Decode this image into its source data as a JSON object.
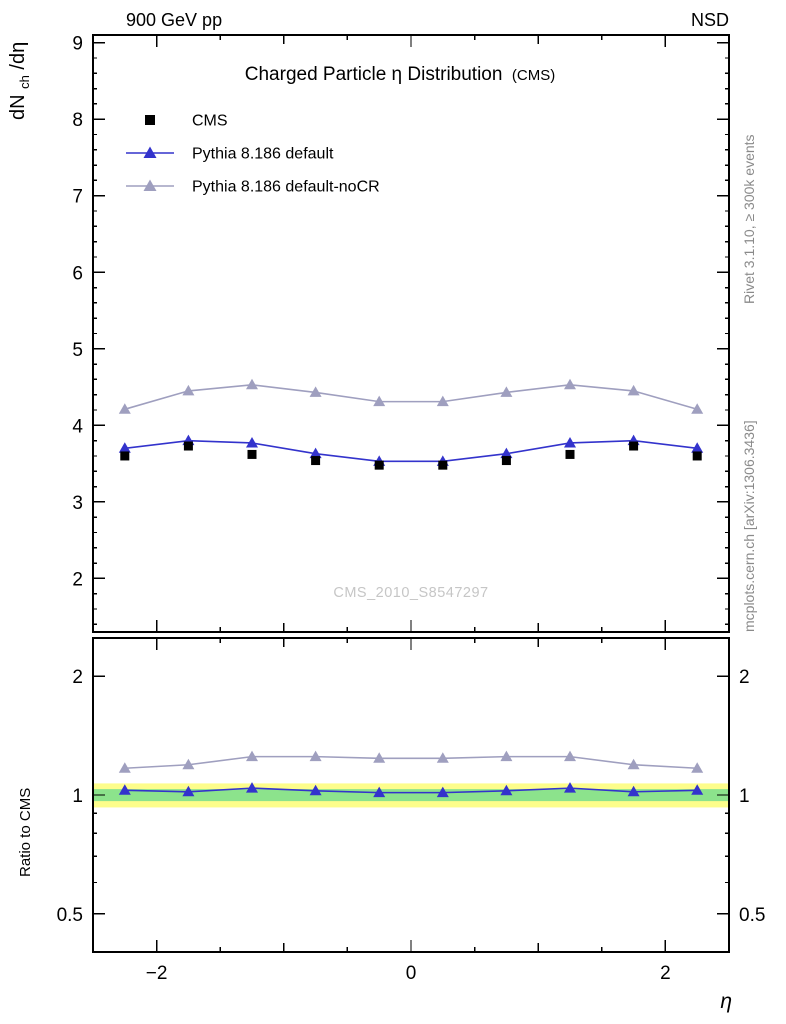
{
  "header": {
    "left": "900 GeV pp",
    "right": "NSD"
  },
  "titles": {
    "main": "Charged Particle η Distribution",
    "suffix": "(CMS)",
    "watermark": "CMS_2010_S8547297",
    "ylabel_main_pre": "dN",
    "ylabel_main_sub": "ch",
    "ylabel_main_post": "/dη",
    "ylabel_ratio": "Ratio to CMS",
    "xlabel": "η",
    "right_top": "Rivet 3.1.10, ≥ 300k events",
    "right_bottom": "mcplots.cern.ch [arXiv:1306.3436]"
  },
  "legend": [
    {
      "label": "CMS",
      "marker": "square",
      "color": "#000000",
      "line": false
    },
    {
      "label": "Pythia 8.186 default",
      "marker": "triangle",
      "color": "#3333cc",
      "line": true
    },
    {
      "label": "Pythia 8.186 default-noCR",
      "marker": "triangle",
      "color": "#9f9fbf",
      "line": true
    }
  ],
  "colors": {
    "pythia_default": "#3333cc",
    "pythia_nocr": "#9f9fbf",
    "cms_data": "#000000",
    "band_outer": "#fdfd8b",
    "band_inner": "#8ce38c",
    "side_text": "#8a8a8a",
    "watermark": "#c6c6c6"
  },
  "chart_data": [
    {
      "type": "line",
      "panel": "main",
      "title": "Charged Particle η Distribution (CMS)",
      "xlabel": "η",
      "ylabel": "dN_ch/dη",
      "xlim": [
        -2.5,
        2.5
      ],
      "ylim": [
        1.3,
        9.1
      ],
      "yscale": "linear",
      "yticks": [
        2,
        3,
        4,
        5,
        6,
        7,
        8,
        9
      ],
      "ytick_labels": [
        "2",
        "3",
        "4",
        "5",
        "6",
        "7",
        "8",
        "9"
      ],
      "yminor_step": 0.2,
      "xticks": [
        -2,
        0,
        2
      ],
      "xtick_labels": [
        "−2",
        "0",
        "2"
      ],
      "show_xtick_labels": false,
      "ylabels_both": false,
      "legend_position": "top-left-inside",
      "grid": false,
      "x": [
        -2.25,
        -1.75,
        -1.25,
        -0.75,
        -0.25,
        0.25,
        0.75,
        1.25,
        1.75,
        2.25
      ],
      "series": [
        {
          "name": "Pythia 8.186 default-noCR",
          "marker": "triangle",
          "color": "#9f9fbf",
          "line": true,
          "values": [
            4.21,
            4.45,
            4.53,
            4.43,
            4.31,
            4.31,
            4.43,
            4.53,
            4.45,
            4.21
          ]
        },
        {
          "name": "Pythia 8.186 default",
          "marker": "triangle",
          "color": "#3333cc",
          "line": true,
          "values": [
            3.7,
            3.8,
            3.77,
            3.63,
            3.53,
            3.53,
            3.63,
            3.77,
            3.8,
            3.7
          ]
        },
        {
          "name": "CMS",
          "marker": "square",
          "color": "#000000",
          "line": false,
          "values": [
            3.6,
            3.73,
            3.62,
            3.54,
            3.48,
            3.48,
            3.54,
            3.62,
            3.73,
            3.6
          ]
        }
      ]
    },
    {
      "type": "line",
      "panel": "ratio",
      "ylabel": "Ratio to CMS",
      "xlabel": "η",
      "xlim": [
        -2.5,
        2.5
      ],
      "ylim": [
        0.4,
        2.5
      ],
      "yscale": "log",
      "yticks": [
        0.5,
        1,
        2
      ],
      "ytick_labels": [
        "0.5",
        "1",
        "2"
      ],
      "yminors": [
        0.4,
        0.6,
        0.7,
        0.8,
        0.9
      ],
      "xticks": [
        -2,
        0,
        2
      ],
      "xtick_labels": [
        "−2",
        "0",
        "2"
      ],
      "show_xtick_labels": true,
      "ylabels_both": true,
      "grid": false,
      "bands": [
        {
          "name": "outer-uncertainty-band",
          "color": "#fdfd8b",
          "low": 0.93,
          "high": 1.07
        },
        {
          "name": "inner-uncertainty-band",
          "color": "#8ce38c",
          "low": 0.965,
          "high": 1.035
        }
      ],
      "x": [
        -2.25,
        -1.75,
        -1.25,
        -0.75,
        -0.25,
        0.25,
        0.75,
        1.25,
        1.75,
        2.25
      ],
      "series": [
        {
          "name": "Pythia 8.186 default-noCR",
          "marker": "triangle",
          "color": "#9f9fbf",
          "line": true,
          "values": [
            1.169,
            1.193,
            1.251,
            1.251,
            1.239,
            1.239,
            1.251,
            1.251,
            1.193,
            1.169
          ]
        },
        {
          "name": "Pythia 8.186 default",
          "marker": "triangle",
          "color": "#3333cc",
          "line": true,
          "values": [
            1.028,
            1.019,
            1.041,
            1.025,
            1.014,
            1.014,
            1.025,
            1.041,
            1.019,
            1.028
          ]
        }
      ]
    }
  ]
}
